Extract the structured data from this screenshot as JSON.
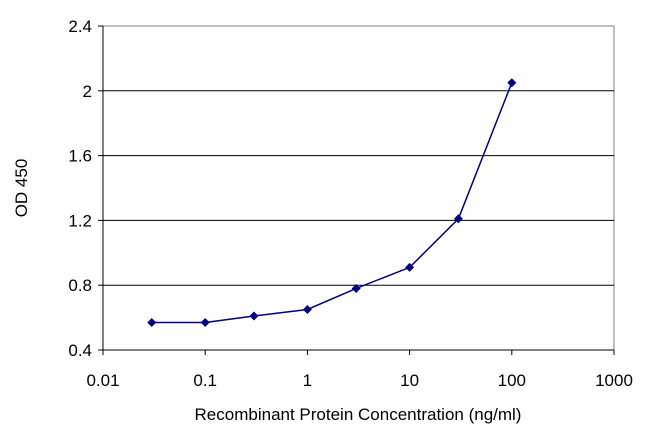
{
  "chart_data": {
    "type": "line",
    "title": "",
    "xlabel": "Recombinant Protein Concentration (ng/ml)",
    "ylabel": "OD 450",
    "xscale": "log",
    "xlim": [
      0.01,
      1000
    ],
    "ylim": [
      0.4,
      2.4
    ],
    "xticks": [
      "0.01",
      "0.1",
      "1",
      "10",
      "100",
      "1000"
    ],
    "yticks": [
      "0.4",
      "0.8",
      "1.2",
      "1.6",
      "2",
      "2.4"
    ],
    "grid": "horizontal",
    "legend": "none",
    "series": [
      {
        "color": "#000080",
        "marker": "diamond",
        "points": [
          {
            "x": 0.03,
            "y": 0.57
          },
          {
            "x": 0.1,
            "y": 0.57
          },
          {
            "x": 0.3,
            "y": 0.61
          },
          {
            "x": 1,
            "y": 0.65
          },
          {
            "x": 3,
            "y": 0.78
          },
          {
            "x": 10,
            "y": 0.91
          },
          {
            "x": 30,
            "y": 1.21
          },
          {
            "x": 100,
            "y": 2.05
          }
        ]
      }
    ]
  }
}
